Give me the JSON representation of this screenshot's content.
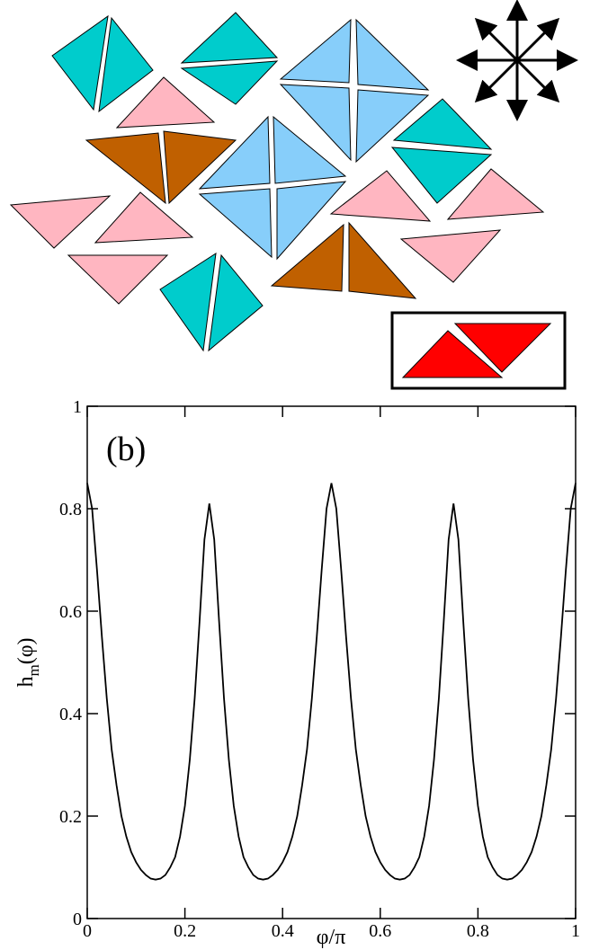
{
  "chart_data": {
    "type": "line",
    "annotation": "(b)",
    "xlabel": "φ/π",
    "ylabel": {
      "base": "h",
      "subscript": "m",
      "rest": "(φ)"
    },
    "xlim": [
      0,
      1
    ],
    "ylim": [
      0,
      1
    ],
    "xticks": [
      0,
      0.2,
      0.4,
      0.6,
      0.8,
      1
    ],
    "yticks": [
      0,
      0.2,
      0.4,
      0.6,
      0.8,
      1
    ],
    "color": "#000000",
    "x": [
      0,
      0.01,
      0.02,
      0.03,
      0.04,
      0.05,
      0.06,
      0.07,
      0.08,
      0.09,
      0.1,
      0.11,
      0.12,
      0.13,
      0.14,
      0.15,
      0.16,
      0.17,
      0.18,
      0.19,
      0.2,
      0.21,
      0.22,
      0.23,
      0.24,
      0.25,
      0.26,
      0.27,
      0.28,
      0.29,
      0.3,
      0.31,
      0.32,
      0.33,
      0.34,
      0.35,
      0.36,
      0.37,
      0.38,
      0.39,
      0.4,
      0.41,
      0.42,
      0.43,
      0.44,
      0.45,
      0.46,
      0.47,
      0.48,
      0.49,
      0.5,
      0.51,
      0.52,
      0.53,
      0.54,
      0.55,
      0.56,
      0.57,
      0.58,
      0.59,
      0.6,
      0.61,
      0.62,
      0.63,
      0.64,
      0.65,
      0.66,
      0.67,
      0.68,
      0.69,
      0.7,
      0.71,
      0.72,
      0.73,
      0.74,
      0.75,
      0.76,
      0.77,
      0.78,
      0.79,
      0.8,
      0.81,
      0.82,
      0.83,
      0.84,
      0.85,
      0.86,
      0.87,
      0.88,
      0.89,
      0.9,
      0.91,
      0.92,
      0.93,
      0.94,
      0.95,
      0.96,
      0.97,
      0.98,
      0.99,
      1
    ],
    "values": [
      0.85,
      0.8,
      0.68,
      0.55,
      0.43,
      0.33,
      0.26,
      0.2,
      0.16,
      0.13,
      0.11,
      0.095,
      0.085,
      0.078,
      0.076,
      0.078,
      0.085,
      0.1,
      0.12,
      0.16,
      0.22,
      0.31,
      0.43,
      0.58,
      0.74,
      0.81,
      0.74,
      0.58,
      0.43,
      0.31,
      0.22,
      0.16,
      0.12,
      0.1,
      0.085,
      0.078,
      0.076,
      0.078,
      0.085,
      0.095,
      0.11,
      0.13,
      0.16,
      0.2,
      0.26,
      0.33,
      0.43,
      0.55,
      0.68,
      0.8,
      0.85,
      0.8,
      0.68,
      0.55,
      0.43,
      0.33,
      0.26,
      0.2,
      0.16,
      0.13,
      0.11,
      0.095,
      0.085,
      0.078,
      0.076,
      0.078,
      0.085,
      0.1,
      0.12,
      0.16,
      0.22,
      0.31,
      0.43,
      0.58,
      0.74,
      0.81,
      0.74,
      0.58,
      0.43,
      0.31,
      0.22,
      0.16,
      0.12,
      0.1,
      0.085,
      0.078,
      0.076,
      0.078,
      0.085,
      0.095,
      0.11,
      0.13,
      0.16,
      0.2,
      0.26,
      0.33,
      0.43,
      0.55,
      0.68,
      0.8,
      0.85
    ]
  }
}
